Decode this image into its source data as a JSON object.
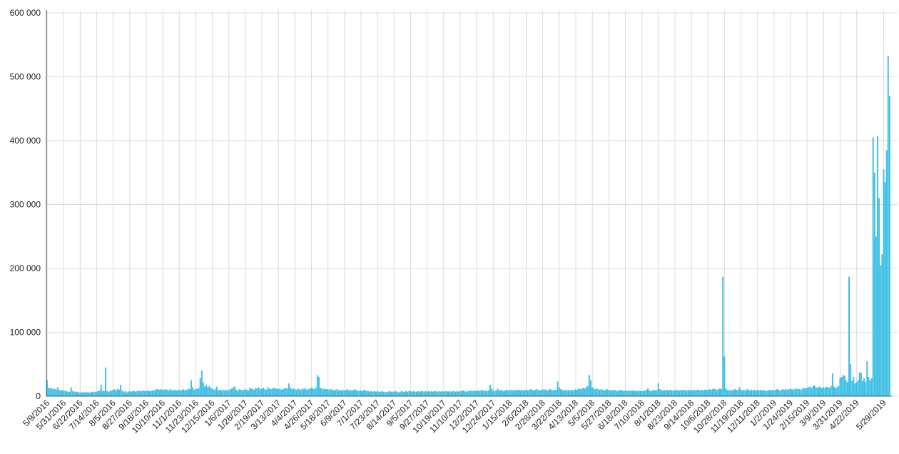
{
  "chart_data": {
    "type": "bar",
    "color": "#3cbfe6",
    "grid": true,
    "ylim": [
      0,
      600000
    ],
    "yticks": [
      0,
      {
        "value": 100000,
        "label": "100 000"
      },
      {
        "value": 200000,
        "label": "200 000"
      },
      {
        "value": 300000,
        "label": "300 000"
      },
      {
        "value": 400000,
        "label": "400 000"
      },
      {
        "value": 500000,
        "label": "500 000"
      },
      {
        "value": 600000,
        "label": "600 000"
      }
    ],
    "categories": [
      "5/9/2016",
      null,
      null,
      null,
      null,
      null,
      null,
      null,
      null,
      null,
      null,
      "5/31/2016",
      null,
      null,
      null,
      null,
      null,
      null,
      null,
      null,
      null,
      null,
      "6/22/2016",
      null,
      null,
      null,
      null,
      null,
      null,
      null,
      null,
      null,
      null,
      "7/14/2016",
      null,
      null,
      null,
      null,
      null,
      null,
      null,
      null,
      null,
      null,
      "8/5/2016",
      null,
      null,
      null,
      null,
      null,
      null,
      null,
      null,
      null,
      null,
      "8/27/2016",
      null,
      null,
      null,
      null,
      null,
      null,
      null,
      null,
      null,
      null,
      "9/18/2016",
      null,
      null,
      null,
      null,
      null,
      null,
      null,
      null,
      null,
      null,
      "10/10/2016",
      null,
      null,
      null,
      null,
      null,
      null,
      null,
      null,
      null,
      null,
      "11/1/2016",
      null,
      null,
      null,
      null,
      null,
      null,
      null,
      null,
      null,
      null,
      "11/23/2016",
      null,
      null,
      null,
      null,
      null,
      null,
      null,
      null,
      null,
      null,
      "12/15/2016",
      null,
      null,
      null,
      null,
      null,
      null,
      null,
      null,
      null,
      null,
      "1/6/2017",
      null,
      null,
      null,
      null,
      null,
      null,
      null,
      null,
      null,
      null,
      "1/28/2017",
      null,
      null,
      null,
      null,
      null,
      null,
      null,
      null,
      null,
      null,
      "2/19/2017",
      null,
      null,
      null,
      null,
      null,
      null,
      null,
      null,
      null,
      null,
      "3/13/2017",
      null,
      null,
      null,
      null,
      null,
      null,
      null,
      null,
      null,
      null,
      "4/4/2017",
      null,
      null,
      null,
      null,
      null,
      null,
      null,
      null,
      null,
      null,
      "4/26/2017",
      null,
      null,
      null,
      null,
      null,
      null,
      null,
      null,
      null,
      null,
      "5/18/2017",
      null,
      null,
      null,
      null,
      null,
      null,
      null,
      null,
      null,
      null,
      "6/9/2017",
      null,
      null,
      null,
      null,
      null,
      null,
      null,
      null,
      null,
      null,
      "7/1/2017",
      null,
      null,
      null,
      null,
      null,
      null,
      null,
      null,
      null,
      null,
      "7/23/2017",
      null,
      null,
      null,
      null,
      null,
      null,
      null,
      null,
      null,
      null,
      "8/14/2017",
      null,
      null,
      null,
      null,
      null,
      null,
      null,
      null,
      null,
      null,
      "9/5/2017",
      null,
      null,
      null,
      null,
      null,
      null,
      null,
      null,
      null,
      null,
      "9/27/2017",
      null,
      null,
      null,
      null,
      null,
      null,
      null,
      null,
      null,
      null,
      "10/19/2017",
      null,
      null,
      null,
      null,
      null,
      null,
      null,
      null,
      null,
      null,
      "11/10/2017",
      null,
      null,
      null,
      null,
      null,
      null,
      null,
      null,
      null,
      null,
      "12/2/2017",
      null,
      null,
      null,
      null,
      null,
      null,
      null,
      null,
      null,
      null,
      "12/24/2017",
      null,
      null,
      null,
      null,
      null,
      null,
      null,
      null,
      null,
      null,
      "1/15/2018",
      null,
      null,
      null,
      null,
      null,
      null,
      null,
      null,
      null,
      null,
      "2/6/2018",
      null,
      null,
      null,
      null,
      null,
      null,
      null,
      null,
      null,
      null,
      "2/28/2018",
      null,
      null,
      null,
      null,
      null,
      null,
      null,
      null,
      null,
      null,
      "3/22/2018",
      null,
      null,
      null,
      null,
      null,
      null,
      null,
      null,
      null,
      null,
      "4/13/2018",
      null,
      null,
      null,
      null,
      null,
      null,
      null,
      null,
      null,
      null,
      "5/5/2018",
      null,
      null,
      null,
      null,
      null,
      null,
      null,
      null,
      null,
      null,
      "5/27/2018",
      null,
      null,
      null,
      null,
      null,
      null,
      null,
      null,
      null,
      null,
      "6/18/2018",
      null,
      null,
      null,
      null,
      null,
      null,
      null,
      null,
      null,
      null,
      "7/10/2018",
      null,
      null,
      null,
      null,
      null,
      null,
      null,
      null,
      null,
      null,
      "8/1/2018",
      null,
      null,
      null,
      null,
      null,
      null,
      null,
      null,
      null,
      null,
      "8/23/2018",
      null,
      null,
      null,
      null,
      null,
      null,
      null,
      null,
      null,
      null,
      "9/14/2018",
      null,
      null,
      null,
      null,
      null,
      null,
      null,
      null,
      null,
      null,
      "10/6/2018",
      null,
      null,
      null,
      null,
      null,
      null,
      null,
      null,
      null,
      null,
      "10/28/2018",
      null,
      null,
      null,
      null,
      null,
      null,
      null,
      null,
      null,
      null,
      "11/19/2018",
      null,
      null,
      null,
      null,
      null,
      null,
      null,
      null,
      null,
      null,
      "12/11/2018",
      null,
      null,
      null,
      null,
      null,
      null,
      null,
      null,
      null,
      null,
      "1/2/2019",
      null,
      null,
      null,
      null,
      null,
      null,
      null,
      null,
      null,
      null,
      "1/24/2019",
      null,
      null,
      null,
      null,
      null,
      null,
      null,
      null,
      null,
      null,
      "2/15/2019",
      null,
      null,
      null,
      null,
      null,
      null,
      null,
      null,
      null,
      null,
      "3/9/2019",
      null,
      null,
      null,
      null,
      null,
      null,
      null,
      null,
      null,
      null,
      "3/31/2019",
      null,
      null,
      null,
      null,
      null,
      null,
      null,
      null,
      null,
      null,
      "4/22/2019",
      null,
      null,
      null,
      null,
      null,
      null,
      null,
      null,
      null,
      null,
      null,
      null,
      null,
      null,
      null,
      null,
      null,
      "5/29/2019",
      null,
      null,
      null,
      null
    ],
    "values": [
      25000,
      13000,
      12000,
      13000,
      11000,
      12000,
      10000,
      14000,
      10000,
      9000,
      9000,
      9000,
      8000,
      8000,
      7000,
      7000,
      14000,
      8000,
      7000,
      7000,
      7000,
      6000,
      6000,
      6000,
      6000,
      6000,
      7000,
      6000,
      6000,
      6000,
      7000,
      6000,
      7000,
      7000,
      8000,
      9000,
      18000,
      8000,
      8000,
      45000,
      8000,
      7000,
      8000,
      9000,
      10000,
      11000,
      9000,
      12000,
      10000,
      18000,
      9000,
      7000,
      8000,
      6000,
      7000,
      8000,
      7000,
      8000,
      8000,
      7000,
      8000,
      9000,
      8000,
      8000,
      9000,
      8000,
      8000,
      9000,
      8000,
      8000,
      9000,
      9000,
      10000,
      11000,
      11000,
      10000,
      11000,
      10000,
      10000,
      11000,
      10000,
      9000,
      11000,
      10000,
      9000,
      10000,
      9000,
      9000,
      10000,
      9000,
      10000,
      11000,
      9000,
      10000,
      12000,
      11000,
      25000,
      14000,
      10000,
      12000,
      11000,
      13000,
      28000,
      40000,
      22000,
      15000,
      18000,
      14000,
      16000,
      13000,
      12000,
      10000,
      11000,
      15000,
      9000,
      10000,
      9000,
      10000,
      9000,
      10000,
      9000,
      10000,
      11000,
      12000,
      14000,
      15000,
      10000,
      9000,
      11000,
      10000,
      9000,
      10000,
      11000,
      10000,
      9000,
      13000,
      12000,
      11000,
      10000,
      13000,
      12000,
      14000,
      11000,
      12000,
      13000,
      11000,
      10000,
      14000,
      12000,
      11000,
      12000,
      13000,
      12000,
      12000,
      11000,
      12000,
      10000,
      11000,
      12000,
      13000,
      12000,
      20000,
      14000,
      11000,
      12000,
      11000,
      10000,
      12000,
      11000,
      10000,
      12000,
      11000,
      13000,
      10000,
      11000,
      12000,
      13000,
      12000,
      11000,
      14000,
      33000,
      30000,
      13000,
      12000,
      11000,
      12000,
      11000,
      11000,
      10000,
      11000,
      10000,
      9000,
      10000,
      11000,
      9000,
      10000,
      9000,
      10000,
      9000,
      10000,
      11000,
      9000,
      10000,
      9000,
      10000,
      11000,
      9000,
      9000,
      8000,
      9000,
      8000,
      10000,
      9000,
      8000,
      8000,
      7000,
      8000,
      7000,
      8000,
      7000,
      8000,
      7000,
      7000,
      8000,
      7000,
      6000,
      7000,
      7000,
      8000,
      7000,
      7000,
      7000,
      8000,
      7000,
      6000,
      7000,
      8000,
      7000,
      7000,
      8000,
      7000,
      8000,
      8000,
      7000,
      8000,
      7000,
      7000,
      8000,
      7000,
      8000,
      8000,
      7000,
      8000,
      7000,
      8000,
      7000,
      8000,
      7000,
      8000,
      8000,
      7000,
      8000,
      7000,
      8000,
      7000,
      8000,
      8000,
      7000,
      8000,
      7000,
      8000,
      8000,
      7000,
      8000,
      7000,
      8000,
      8000,
      9000,
      8000,
      7000,
      8000,
      8000,
      9000,
      8000,
      8000,
      9000,
      8000,
      9000,
      8000,
      9000,
      10000,
      8000,
      9000,
      8000,
      9000,
      18000,
      12000,
      9000,
      8000,
      9000,
      12000,
      9000,
      10000,
      9000,
      8000,
      9000,
      10000,
      9000,
      9000,
      10000,
      9000,
      10000,
      9000,
      10000,
      10000,
      9000,
      10000,
      9000,
      10000,
      10000,
      9000,
      10000,
      11000,
      10000,
      9000,
      10000,
      11000,
      10000,
      9000,
      10000,
      10000,
      11000,
      10000,
      9000,
      10000,
      11000,
      10000,
      9000,
      10000,
      10000,
      23000,
      14000,
      11000,
      10000,
      9000,
      10000,
      9000,
      10000,
      9000,
      10000,
      9000,
      10000,
      11000,
      10000,
      12000,
      11000,
      12000,
      13000,
      12000,
      14000,
      16000,
      33000,
      25000,
      14000,
      12000,
      11000,
      12000,
      11000,
      10000,
      11000,
      10000,
      9000,
      10000,
      11000,
      10000,
      9000,
      10000,
      9000,
      10000,
      9000,
      8000,
      9000,
      10000,
      9000,
      8000,
      9000,
      8000,
      9000,
      8000,
      9000,
      9000,
      8000,
      9000,
      8000,
      9000,
      8000,
      9000,
      8000,
      9000,
      10000,
      12000,
      9000,
      8000,
      9000,
      10000,
      9000,
      10000,
      20000,
      11000,
      10000,
      9000,
      10000,
      9000,
      10000,
      9000,
      10000,
      9000,
      9000,
      9000,
      10000,
      9000,
      9000,
      10000,
      9000,
      10000,
      9000,
      9000,
      10000,
      9000,
      10000,
      9000,
      10000,
      9000,
      10000,
      10000,
      9000,
      10000,
      9000,
      10000,
      10000,
      10000,
      11000,
      10000,
      11000,
      12000,
      11000,
      10000,
      11000,
      12000,
      11000,
      187000,
      62000,
      12000,
      10000,
      9000,
      10000,
      9000,
      10000,
      11000,
      10000,
      9000,
      14000,
      10000,
      9000,
      10000,
      9000,
      11000,
      10000,
      9000,
      10000,
      9000,
      10000,
      9000,
      10000,
      9000,
      10000,
      9000,
      10000,
      9000,
      8000,
      9000,
      10000,
      9000,
      10000,
      9000,
      10000,
      11000,
      10000,
      9000,
      10000,
      11000,
      10000,
      11000,
      10000,
      11000,
      12000,
      11000,
      10000,
      12000,
      11000,
      12000,
      11000,
      10000,
      12000,
      13000,
      12000,
      13000,
      14000,
      15000,
      13000,
      16000,
      17000,
      14000,
      13000,
      15000,
      14000,
      13000,
      14000,
      13000,
      15000,
      14000,
      13000,
      16000,
      36000,
      15000,
      13000,
      14000,
      16000,
      28000,
      30000,
      33000,
      32000,
      25000,
      22000,
      187000,
      50000,
      24000,
      30000,
      20000,
      22000,
      25000,
      37000,
      37000,
      24000,
      28000,
      22000,
      55000,
      30000,
      25000,
      28000,
      405000,
      350000,
      250000,
      407000,
      310000,
      205000,
      222000,
      355000,
      335000,
      385000,
      533000,
      470000
    ]
  }
}
